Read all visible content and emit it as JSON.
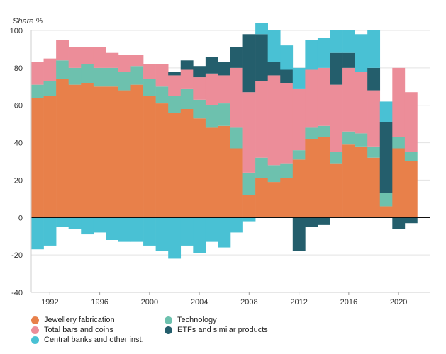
{
  "chart_data": {
    "type": "bar",
    "stacked": true,
    "title": "",
    "ylabel": "Share %",
    "xlabel": "",
    "ylim": [
      -40,
      100
    ],
    "yticks": [
      -40,
      -20,
      0,
      20,
      40,
      60,
      80,
      100
    ],
    "xticks": [
      "1992",
      "1996",
      "2000",
      "2004",
      "2008",
      "2012",
      "2016",
      "2020"
    ],
    "categories": [
      "1991",
      "1992",
      "1993",
      "1994",
      "1995",
      "1996",
      "1997",
      "1998",
      "1999",
      "2000",
      "2001",
      "2002",
      "2003",
      "2004",
      "2005",
      "2006",
      "2007",
      "2008",
      "2009",
      "2010",
      "2011",
      "2012",
      "2013",
      "2014",
      "2015",
      "2016",
      "2017",
      "2018",
      "2019",
      "2020",
      "2021",
      "2022"
    ],
    "series": [
      {
        "name": "Jewellery fabrication",
        "color": "#E8804A",
        "values": [
          64,
          65,
          74,
          71,
          72,
          70,
          70,
          68,
          71,
          65,
          61,
          56,
          58,
          53,
          48,
          49,
          37,
          12,
          21,
          19,
          21,
          31,
          42,
          43,
          29,
          39,
          38,
          32,
          6,
          37,
          30,
          null
        ]
      },
      {
        "name": "Technology",
        "color": "#6DC1AE",
        "values": [
          7,
          8,
          10,
          9,
          10,
          10,
          10,
          10,
          10,
          9,
          9,
          9,
          11,
          10,
          12,
          12,
          11,
          12,
          11,
          9,
          8,
          5,
          6,
          6,
          6,
          7,
          7,
          6,
          7,
          6,
          5,
          null
        ]
      },
      {
        "name": "Total bars and coins",
        "color": "#EC8D99",
        "values": [
          12,
          12,
          11,
          11,
          9,
          11,
          8,
          9,
          6,
          8,
          12,
          11,
          10,
          12,
          17,
          15,
          32,
          43,
          41,
          48,
          43,
          33,
          31,
          31,
          36,
          34,
          33,
          30,
          0,
          37,
          32,
          null
        ]
      },
      {
        "name": "ETFs and similar products",
        "color": "#245E6C",
        "values": [
          0,
          0,
          0,
          0,
          0,
          0,
          0,
          0,
          0,
          0,
          0,
          2,
          5,
          6,
          9,
          7,
          11,
          31,
          25,
          7,
          7,
          0,
          0,
          0,
          17,
          8,
          0,
          12,
          38,
          0,
          0,
          null
        ]
      },
      {
        "name": "Central banks and other inst.",
        "color": "#49C1D4",
        "values": [
          -17,
          -15,
          -5,
          -6,
          -9,
          -8,
          -12,
          -13,
          -13,
          -15,
          -18,
          -22,
          -15,
          -19,
          -13,
          -16,
          -8,
          -2,
          6,
          17,
          13,
          11,
          16,
          16,
          12,
          12,
          20,
          20,
          11,
          0,
          0,
          null
        ]
      }
    ],
    "negatives": {
      "2012": {
        "ETFs and similar products": -18
      },
      "2013": {
        "ETFs and similar products": -5
      },
      "2014": {
        "ETFs and similar products": -4
      },
      "2020": {
        "ETFs and similar products": -6
      },
      "2021": {
        "ETFs and similar products": -3
      }
    },
    "legend": "bottom-left"
  },
  "legend_items": [
    {
      "label": "Jewellery fabrication",
      "color": "#E8804A"
    },
    {
      "label": "Technology",
      "color": "#6DC1AE"
    },
    {
      "label": "Total bars and coins",
      "color": "#EC8D99"
    },
    {
      "label": "ETFs and similar products",
      "color": "#245E6C"
    },
    {
      "label": "Central banks and other inst.",
      "color": "#49C1D4"
    }
  ]
}
